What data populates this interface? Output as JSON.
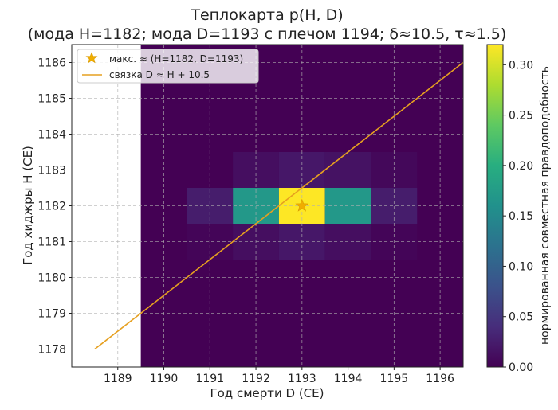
{
  "chart_data": {
    "type": "heatmap",
    "title_line1": "Теплокарта p(H, D)",
    "title_line2": "(мода H=1182; мода D=1193 с плечом 1194; δ≈10.5, τ≈1.5)",
    "xlabel": "Год смерти D (CE)",
    "ylabel": "Год хиджры H (CE)",
    "colorbar_label": "нормированная совместная правдоподобность",
    "xlim": [
      1188.0,
      1196.5
    ],
    "ylim": [
      1177.5,
      1186.5
    ],
    "x_ticks": [
      1189,
      1190,
      1191,
      1192,
      1193,
      1194,
      1195,
      1196
    ],
    "y_ticks": [
      1178,
      1179,
      1180,
      1181,
      1182,
      1183,
      1184,
      1185,
      1186
    ],
    "x_tick_labels": [
      "1189",
      "1190",
      "1191",
      "1192",
      "1193",
      "1194",
      "1195",
      "1196"
    ],
    "y_tick_labels": [
      "1178",
      "1179",
      "1180",
      "1181",
      "1182",
      "1183",
      "1184",
      "1185",
      "1186"
    ],
    "colorbar_range": [
      0.0,
      0.32
    ],
    "colorbar_ticks": [
      0.0,
      0.05,
      0.1,
      0.15,
      0.2,
      0.25,
      0.3
    ],
    "colorbar_tick_labels": [
      "0.00",
      "0.05",
      "0.10",
      "0.15",
      "0.20",
      "0.25",
      "0.30"
    ],
    "colormap": "viridis",
    "grid": true,
    "legend_position": "top-left",
    "heat_x_range": [
      1189.5,
      1196.5
    ],
    "heat_y_range": [
      1177.5,
      1186.5
    ],
    "cells": [
      {
        "d": 1191,
        "h": 1182,
        "v": 0.025
      },
      {
        "d": 1192,
        "h": 1182,
        "v": 0.17
      },
      {
        "d": 1193,
        "h": 1182,
        "v": 0.32
      },
      {
        "d": 1194,
        "h": 1182,
        "v": 0.17
      },
      {
        "d": 1195,
        "h": 1182,
        "v": 0.025
      },
      {
        "d": 1192,
        "h": 1183,
        "v": 0.012
      },
      {
        "d": 1193,
        "h": 1183,
        "v": 0.02
      },
      {
        "d": 1194,
        "h": 1183,
        "v": 0.015
      },
      {
        "d": 1195,
        "h": 1183,
        "v": 0.006
      },
      {
        "d": 1191,
        "h": 1181,
        "v": 0.004
      },
      {
        "d": 1192,
        "h": 1181,
        "v": 0.012
      },
      {
        "d": 1193,
        "h": 1181,
        "v": 0.02
      },
      {
        "d": 1194,
        "h": 1181,
        "v": 0.012
      },
      {
        "d": 1195,
        "h": 1181,
        "v": 0.004
      }
    ],
    "peak_marker": {
      "d": 1193,
      "h": 1182,
      "label": "макс. ≈ (H=1182, D=1193)",
      "color": "#f0ad00"
    },
    "link_line": {
      "label": "связка D ≈ H + 10.5",
      "offset": 10.5,
      "h_range": [
        1178,
        1186
      ],
      "color": "#e6a020"
    }
  }
}
